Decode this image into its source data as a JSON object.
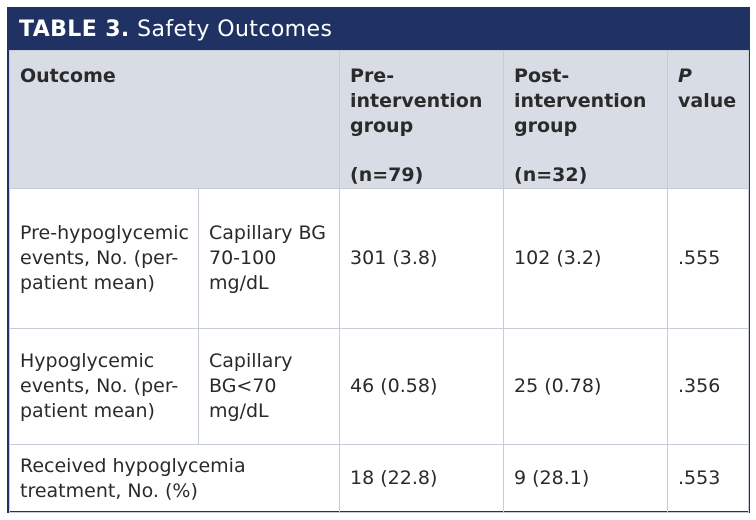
{
  "title": {
    "label": "TABLE 3.",
    "text": "Safety Outcomes"
  },
  "headers": {
    "outcome": "Outcome",
    "pre_line1": "Pre-",
    "pre_line2": "intervention",
    "pre_line3": "group",
    "pre_n": "(n=79)",
    "post_line1": "Post-",
    "post_line2": "intervention",
    "post_line3": "group",
    "post_n": "(n=32)",
    "p_letter": "P",
    "p_word": "value"
  },
  "rows": [
    {
      "outcome": "Pre-hypoglycemic events, No. (per-patient mean)",
      "sub": "Capillary BG 70-100 mg/dL",
      "pre": "301 (3.8)",
      "post": "102 (3.2)",
      "p": ".555"
    },
    {
      "outcome": "Hypoglycemic events, No. (per-patient mean)",
      "sub": "Capillary BG<70 mg/dL",
      "pre": "46 (0.58)",
      "post": "25 (0.78)",
      "p": ".356"
    },
    {
      "outcome": "Received hypoglycemia treatment, No. (%)",
      "pre": "18 (22.8)",
      "post": "9 (28.1)",
      "p": ".553"
    }
  ],
  "colors": {
    "title_bg": "#1f3263",
    "header_bg": "#d8dde5",
    "border": "#c7cdd7"
  }
}
